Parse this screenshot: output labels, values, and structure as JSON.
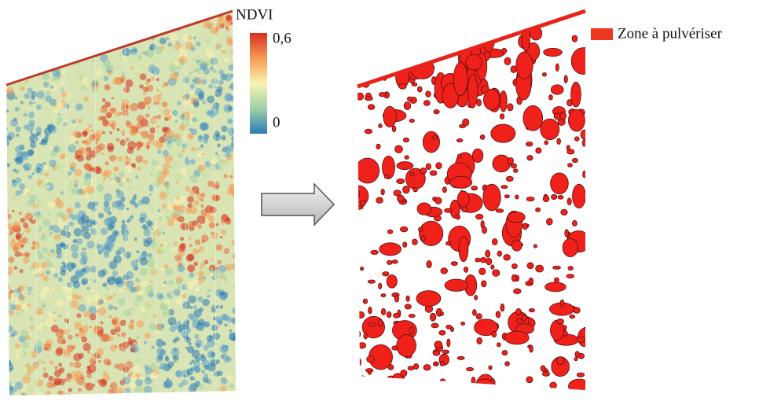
{
  "ndvi_legend": {
    "title": "NDVI",
    "max_label": "0,6",
    "min_label": "0"
  },
  "spray_legend": {
    "label": "Zone à pulvériser"
  }
}
